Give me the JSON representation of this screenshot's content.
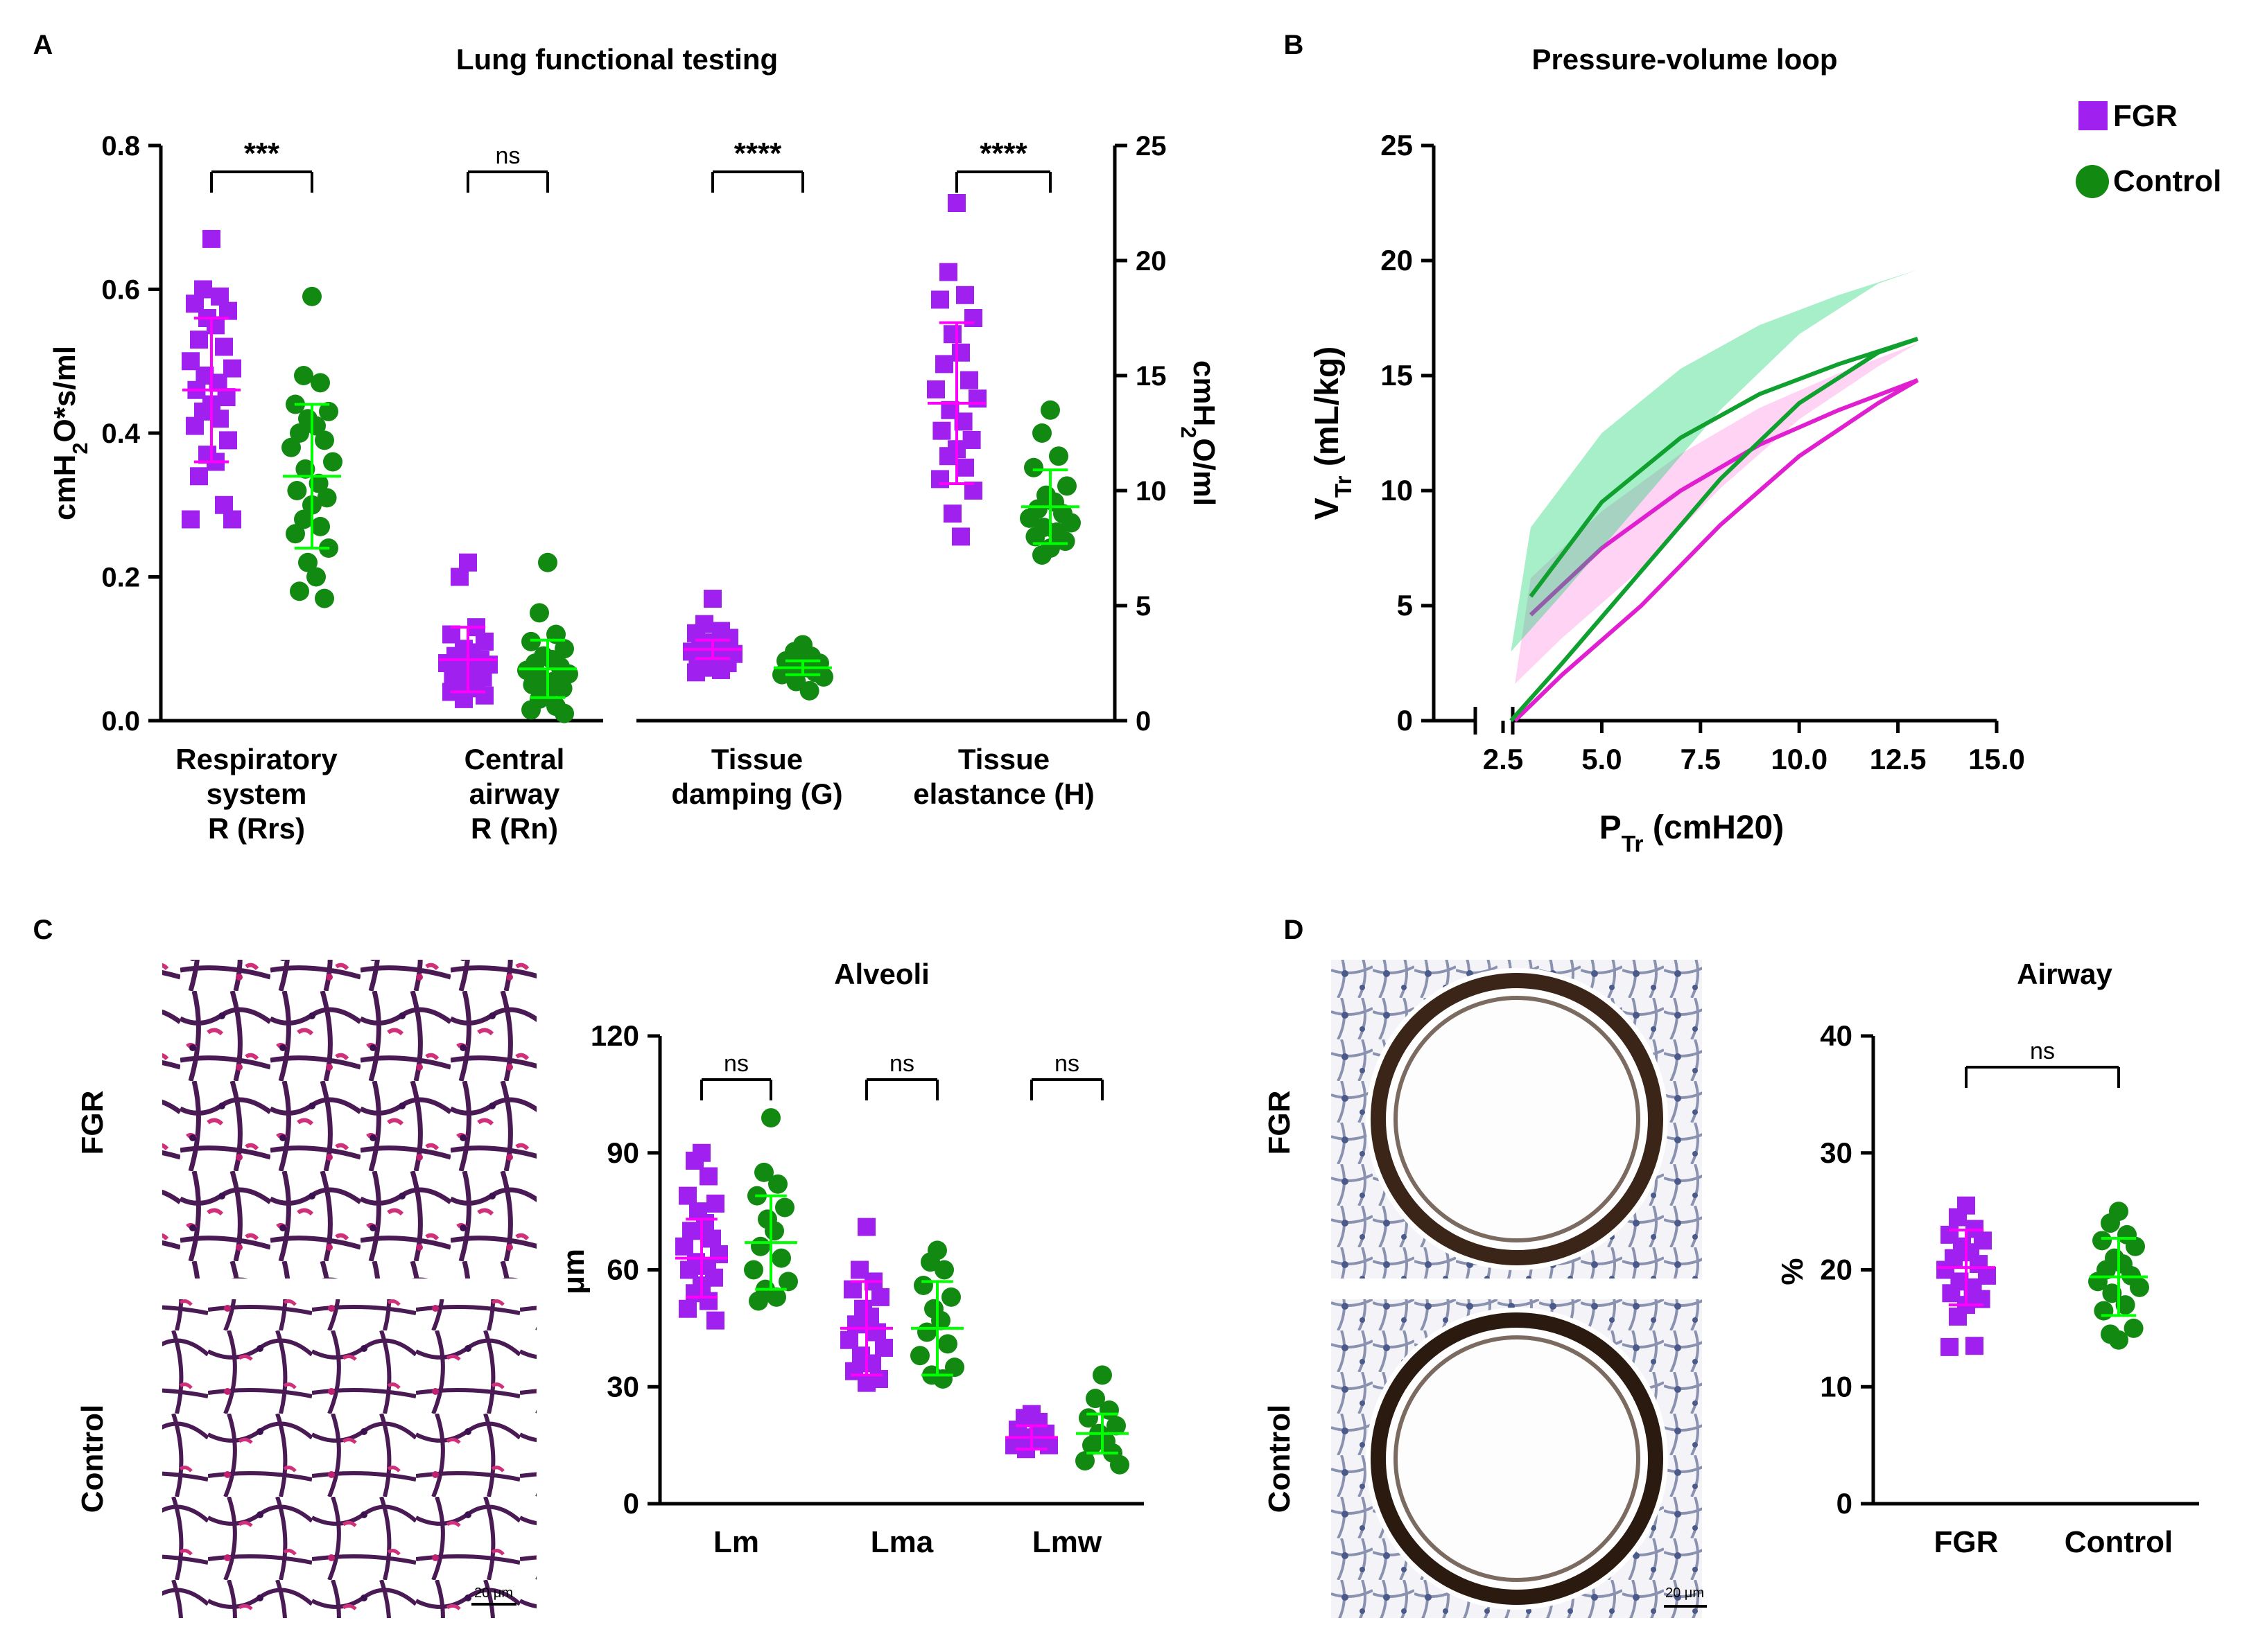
{
  "colors": {
    "fgr": "#a020f0",
    "fgr_bar": "#ff00ff",
    "ctrl": "#128a12",
    "ctrl_bar": "#00ff00",
    "pv_fgr": "#e020d0",
    "pv_ctrl": "#10a030",
    "pv_ctrl_fill": "#00d060"
  },
  "legend": {
    "fgr": "FGR",
    "control": "Control"
  },
  "panels": {
    "a": "A",
    "b": "B",
    "c": "C",
    "d": "D"
  },
  "chart_data": [
    {
      "id": "lung-functional",
      "type": "scatter",
      "title": "Lung functional testing",
      "ylabel": "cmH2O*s/ml",
      "ylabel_parts": [
        "cmH",
        "2",
        "O*s/ml"
      ],
      "ylabel_right": "cmH2O/ml",
      "ylabel_right_parts": [
        "cmH",
        "2",
        "O/ml"
      ],
      "ylim": [
        0,
        0.8
      ],
      "yticks": [
        "0.0",
        "0.2",
        "0.4",
        "0.6",
        "0.8"
      ],
      "ylim_right": [
        0,
        25
      ],
      "yticks_right": [
        "0",
        "5",
        "10",
        "15",
        "20",
        "25"
      ],
      "categories": [
        {
          "label": [
            "Respiratory",
            "system",
            "R (Rrs)"
          ],
          "sig": "***",
          "axis": "left",
          "fgr": {
            "mean": 0.46,
            "sd": 0.1,
            "points": [
              0.67,
              0.6,
              0.59,
              0.58,
              0.57,
              0.56,
              0.55,
              0.53,
              0.52,
              0.5,
              0.49,
              0.48,
              0.47,
              0.46,
              0.45,
              0.44,
              0.43,
              0.42,
              0.41,
              0.39,
              0.37,
              0.36,
              0.34,
              0.3,
              0.28,
              0.28
            ]
          },
          "control": {
            "mean": 0.34,
            "sd": 0.1,
            "points": [
              0.59,
              0.48,
              0.47,
              0.44,
              0.43,
              0.42,
              0.41,
              0.4,
              0.39,
              0.38,
              0.36,
              0.35,
              0.33,
              0.32,
              0.31,
              0.3,
              0.28,
              0.27,
              0.26,
              0.24,
              0.22,
              0.2,
              0.18,
              0.17
            ]
          }
        },
        {
          "label": [
            "Central",
            "airway",
            "R (Rn)"
          ],
          "sig": "ns",
          "axis": "left",
          "fgr": {
            "mean": 0.085,
            "sd": 0.045,
            "points": [
              0.22,
              0.2,
              0.13,
              0.12,
              0.11,
              0.1,
              0.095,
              0.09,
              0.085,
              0.08,
              0.078,
              0.075,
              0.07,
              0.065,
              0.06,
              0.055,
              0.05,
              0.045,
              0.04,
              0.035,
              0.03
            ]
          },
          "control": {
            "mean": 0.072,
            "sd": 0.04,
            "points": [
              0.22,
              0.15,
              0.12,
              0.11,
              0.1,
              0.09,
              0.085,
              0.08,
              0.075,
              0.07,
              0.065,
              0.06,
              0.055,
              0.05,
              0.045,
              0.04,
              0.03,
              0.02,
              0.015,
              0.01
            ]
          }
        },
        {
          "label": [
            "Tissue",
            "damping (G)"
          ],
          "sig": "****",
          "axis": "right",
          "fgr": {
            "mean": 3.1,
            "sd": 0.4,
            "points": [
              5.3,
              4.2,
              3.9,
              3.8,
              3.6,
              3.4,
              3.3,
              3.2,
              3.1,
              3.0,
              2.9,
              2.8,
              2.7,
              2.6,
              2.5,
              2.4,
              2.3,
              2.2,
              2.1
            ]
          },
          "control": {
            "mean": 2.3,
            "sd": 0.3,
            "points": [
              3.3,
              3.0,
              2.8,
              2.6,
              2.5,
              2.4,
              2.3,
              2.2,
              2.1,
              2.0,
              1.9,
              1.7,
              1.3
            ]
          }
        },
        {
          "label": [
            "Tissue",
            "elastance (H)"
          ],
          "sig": "****",
          "axis": "right",
          "fgr": {
            "mean": 13.8,
            "sd": 3.5,
            "points": [
              22.5,
              19.5,
              18.5,
              18.3,
              17.5,
              16.8,
              16.0,
              15.5,
              14.8,
              14.4,
              14.0,
              13.5,
              13.0,
              12.6,
              12.2,
              11.8,
              11.5,
              11.0,
              10.5,
              10.0,
              9.0,
              8.0
            ]
          },
          "control": {
            "mean": 9.3,
            "sd": 1.6,
            "points": [
              13.5,
              12.5,
              11.5,
              11.0,
              10.2,
              9.8,
              9.5,
              9.2,
              9.0,
              8.8,
              8.6,
              8.4,
              8.2,
              8.0,
              7.8,
              7.5,
              7.2
            ]
          }
        }
      ]
    },
    {
      "id": "pv-loop",
      "type": "line",
      "title": "Pressure-volume loop",
      "xlabel": "PTr (cmH20)",
      "xlabel_parts": [
        "P",
        "Tr",
        " (cmH20)"
      ],
      "ylabel": "VTr (mL/kg)",
      "ylabel_parts": [
        "V",
        "Tr",
        " (mL/kg)"
      ],
      "xticks": [
        "2.5",
        "5.0",
        "7.5",
        "10.0",
        "12.5",
        "15.0"
      ],
      "xlim": [
        2.5,
        15
      ],
      "yticks": [
        "0",
        "5",
        "10",
        "15",
        "20",
        "25"
      ],
      "ylim": [
        0,
        25
      ],
      "series": [
        {
          "name": "FGR",
          "inflation": [
            [
              2.8,
              0
            ],
            [
              4,
              2
            ],
            [
              6,
              5
            ],
            [
              8,
              8.5
            ],
            [
              10,
              11.5
            ],
            [
              12,
              13.8
            ],
            [
              13,
              14.8
            ]
          ],
          "deflation": [
            [
              13,
              14.8
            ],
            [
              11,
              13.5
            ],
            [
              9,
              12
            ],
            [
              7,
              10
            ],
            [
              5,
              7.5
            ],
            [
              3.2,
              4.6
            ]
          ],
          "band": 1.6
        },
        {
          "name": "Control",
          "inflation": [
            [
              2.7,
              0
            ],
            [
              4,
              2.5
            ],
            [
              6,
              6.5
            ],
            [
              8,
              10.5
            ],
            [
              10,
              13.8
            ],
            [
              12,
              16
            ],
            [
              13,
              16.6
            ]
          ],
          "deflation": [
            [
              13,
              16.6
            ],
            [
              11,
              15.5
            ],
            [
              9,
              14.2
            ],
            [
              7,
              12.3
            ],
            [
              5,
              9.5
            ],
            [
              3.2,
              5.4
            ]
          ],
          "band": 3.0
        }
      ]
    },
    {
      "id": "alveoli",
      "type": "scatter",
      "title": "Alveoli",
      "ylabel": "μm",
      "ylim": [
        0,
        120
      ],
      "yticks": [
        "0",
        "30",
        "60",
        "90",
        "120"
      ],
      "categories": [
        {
          "label": "Lm",
          "sig": "ns",
          "fgr": {
            "mean": 63,
            "sd": 10,
            "points": [
              90,
              88,
              84,
              79,
              77,
              75,
              72,
              70,
              68,
              66,
              64,
              62,
              61,
              60,
              58,
              56,
              54,
              52,
              50,
              47
            ]
          },
          "control": {
            "mean": 67,
            "sd": 12,
            "points": [
              99,
              85,
              82,
              79,
              76,
              73,
              70,
              66,
              63,
              60,
              57,
              55,
              53,
              52
            ]
          }
        },
        {
          "label": "Lma",
          "sig": "ns",
          "fgr": {
            "mean": 45,
            "sd": 12,
            "points": [
              71,
              60,
              57,
              55,
              53,
              50,
              48,
              46,
              44,
              42,
              40,
              38,
              36,
              34,
              32,
              31
            ]
          },
          "control": {
            "mean": 45,
            "sd": 12,
            "points": [
              65,
              62,
              60,
              56,
              53,
              50,
              47,
              44,
              41,
              38,
              35,
              33,
              32
            ]
          }
        },
        {
          "label": "Lmw",
          "sig": "ns",
          "fgr": {
            "mean": 17,
            "sd": 3,
            "points": [
              23,
              22,
              21,
              19,
              18,
              17,
              17,
              16,
              16,
              15,
              15,
              14
            ]
          },
          "control": {
            "mean": 18,
            "sd": 5,
            "points": [
              33,
              27,
              24,
              22,
              20,
              18,
              16,
              15,
              13,
              11,
              10
            ]
          }
        }
      ]
    },
    {
      "id": "airway",
      "type": "scatter",
      "title": "Airway",
      "ylabel": "%",
      "ylim": [
        0,
        40
      ],
      "yticks": [
        "0",
        "10",
        "20",
        "30",
        "40"
      ],
      "sig": "ns",
      "categories": [
        "FGR",
        "Control"
      ],
      "fgr": {
        "mean": 20.2,
        "sd": 3.2,
        "points": [
          25.5,
          24.5,
          23.5,
          23.0,
          22.5,
          22.0,
          21.5,
          21.0,
          20.5,
          20.0,
          19.5,
          19.0,
          18.5,
          18.0,
          17.5,
          17.0,
          16.0,
          13.5,
          13.4
        ]
      },
      "control": {
        "mean": 19.4,
        "sd": 3.3,
        "points": [
          25,
          24,
          23,
          22.5,
          22,
          21,
          20.5,
          20,
          19.5,
          19,
          18.5,
          18,
          17,
          16.5,
          15,
          14,
          14.5
        ]
      }
    }
  ],
  "histology": {
    "row_labels": {
      "fgr": "FGR",
      "control": "Control"
    },
    "scale_alveoli": "20 μm",
    "scale_airway": "20 μm"
  }
}
